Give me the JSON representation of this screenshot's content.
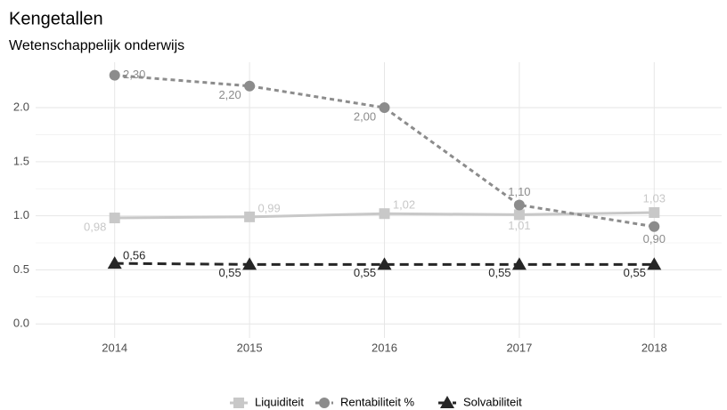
{
  "chart_data": {
    "type": "line",
    "title": "Kengetallen",
    "subtitle": "Wetenschappelijk onderwijs",
    "categories": [
      "2014",
      "2015",
      "2016",
      "2017",
      "2018"
    ],
    "series": [
      {
        "name": "Liquiditeit",
        "color": "#c8c8c8",
        "marker": "square",
        "dash": "solid",
        "values": [
          0.98,
          0.99,
          1.02,
          1.01,
          1.03
        ],
        "value_labels": [
          "0,98",
          "0,99",
          "1,02",
          "1,01",
          "1,03"
        ]
      },
      {
        "name": "Rentabiliteit %",
        "color": "#8c8c8c",
        "marker": "circle",
        "dash": "dotted",
        "values": [
          2.3,
          2.2,
          2.0,
          1.1,
          0.9
        ],
        "value_labels": [
          "2,30",
          "2,20",
          "2,00",
          "1,10",
          "0,90"
        ]
      },
      {
        "name": "Solvabiliteit",
        "color": "#262626",
        "marker": "triangle",
        "dash": "dashed",
        "values": [
          0.56,
          0.55,
          0.55,
          0.55,
          0.55
        ],
        "value_labels": [
          "0,56",
          "0,55",
          "0,55",
          "0,55",
          "0,55"
        ]
      }
    ],
    "ylim": [
      -0.13,
      2.42
    ],
    "yticks": [
      {
        "value": 0,
        "label": "0.0"
      },
      0.5,
      {
        "value": 1,
        "label": "1.0"
      },
      1.5,
      {
        "value": 2,
        "label": "2.0"
      }
    ],
    "grid": true,
    "legend": "bottom"
  }
}
